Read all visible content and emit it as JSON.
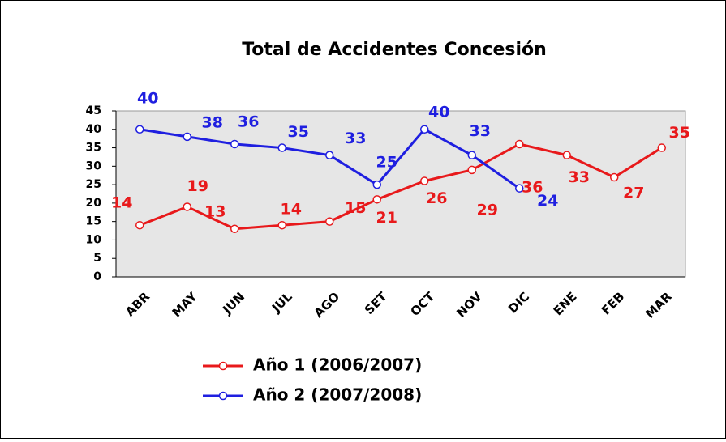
{
  "chart_data": {
    "type": "line",
    "title": "Total de Accidentes Concesión",
    "categories": [
      "ABR",
      "MAY",
      "JUN",
      "JUL",
      "AGO",
      "SET",
      "OCT",
      "NOV",
      "DIC",
      "ENE",
      "FEB",
      "MAR"
    ],
    "series": [
      {
        "name": "Año 1 (2006/2007)",
        "color": "#e8191b",
        "values": [
          14,
          19,
          13,
          14,
          15,
          21,
          26,
          29,
          36,
          33,
          27,
          35
        ]
      },
      {
        "name": "Año 2 (2007/2008)",
        "color": "#1f1fe0",
        "values": [
          40,
          38,
          36,
          35,
          33,
          25,
          40,
          33,
          24,
          null,
          null,
          null
        ]
      }
    ],
    "ylim": [
      0,
      45
    ],
    "yticks": [
      0,
      5,
      10,
      15,
      20,
      25,
      30,
      35,
      40,
      45
    ],
    "grid": false
  }
}
